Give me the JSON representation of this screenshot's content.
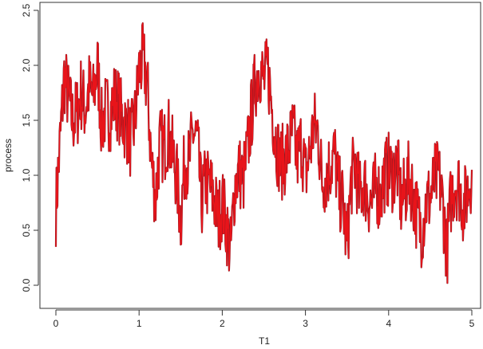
{
  "chart_data": {
    "type": "line",
    "title": "",
    "xlabel": "T1",
    "ylabel": "process",
    "xlim": [
      0,
      5
    ],
    "ylim": [
      -0.1,
      2.55
    ],
    "xticks": [
      0,
      1,
      2,
      3,
      4,
      5
    ],
    "xtick_labels": [
      "0",
      "1",
      "2",
      "3",
      "4",
      "5"
    ],
    "yticks": [
      0.0,
      0.5,
      1.0,
      1.5,
      2.0,
      2.5
    ],
    "ytick_labels": [
      "0.0",
      "0.5",
      "1.0",
      "1.5",
      "2.0",
      "2.5"
    ],
    "grid": false,
    "legend": "none",
    "colors": {
      "series": "#e8141a",
      "series_dark": "#8a1a24",
      "axis": "#333333"
    },
    "series": [
      {
        "x": [
          0.0,
          0.05,
          0.1,
          0.15,
          0.2,
          0.25,
          0.3,
          0.35,
          0.4,
          0.45,
          0.5,
          0.55,
          0.6,
          0.65,
          0.7,
          0.75,
          0.8,
          0.85,
          0.9,
          0.95,
          1.0,
          1.05,
          1.1,
          1.15,
          1.2,
          1.25,
          1.3,
          1.35,
          1.4,
          1.45,
          1.5,
          1.55,
          1.6,
          1.65,
          1.7,
          1.75,
          1.8,
          1.85,
          1.9,
          1.95,
          2.0,
          2.05,
          2.1,
          2.15,
          2.2,
          2.25,
          2.3,
          2.35,
          2.4,
          2.45,
          2.5,
          2.55,
          2.6,
          2.65,
          2.7,
          2.75,
          2.8,
          2.85,
          2.9,
          2.95,
          3.0,
          3.05,
          3.1,
          3.15,
          3.2,
          3.25,
          3.3,
          3.35,
          3.4,
          3.45,
          3.5,
          3.55,
          3.6,
          3.65,
          3.7,
          3.75,
          3.8,
          3.85,
          3.9,
          3.95,
          4.0,
          4.05,
          4.1,
          4.15,
          4.2,
          4.25,
          4.3,
          4.35,
          4.4,
          4.45,
          4.5,
          4.55,
          4.6,
          4.65,
          4.7,
          4.75,
          4.8,
          4.85,
          4.9,
          4.95,
          5.0
        ],
        "y": [
          0.7,
          1.3,
          1.9,
          1.7,
          1.5,
          1.55,
          1.75,
          1.6,
          1.8,
          1.7,
          2.0,
          1.45,
          1.6,
          1.55,
          1.7,
          1.65,
          1.5,
          1.45,
          1.3,
          1.5,
          1.95,
          2.05,
          1.8,
          1.1,
          0.8,
          1.3,
          1.25,
          1.4,
          1.2,
          1.0,
          0.6,
          1.15,
          1.1,
          1.4,
          1.3,
          0.75,
          0.95,
          0.9,
          0.8,
          0.6,
          0.75,
          0.55,
          0.3,
          0.9,
          1.05,
          0.95,
          1.2,
          1.55,
          1.85,
          2.0,
          1.85,
          1.95,
          1.6,
          1.3,
          1.1,
          1.15,
          1.25,
          1.4,
          1.15,
          1.3,
          1.0,
          1.2,
          1.45,
          1.4,
          0.95,
          1.0,
          1.1,
          1.2,
          0.85,
          0.75,
          0.35,
          0.95,
          1.1,
          0.8,
          0.95,
          0.8,
          0.75,
          0.9,
          0.8,
          1.0,
          1.05,
          1.0,
          1.1,
          0.75,
          0.85,
          1.0,
          0.8,
          0.6,
          0.5,
          0.75,
          0.8,
          0.95,
          1.0,
          0.75,
          0.3,
          0.8,
          0.95,
          0.9,
          0.7,
          0.85,
          1.05
        ]
      }
    ]
  }
}
